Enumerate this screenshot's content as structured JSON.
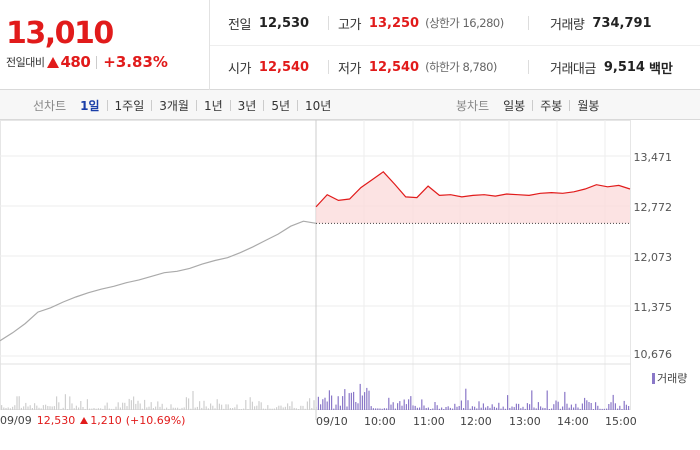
{
  "quote": {
    "price": "13,010",
    "change_label": "전일대비",
    "change_value": "480",
    "change_pct": "+3.83%",
    "prev_close_label": "전일",
    "prev_close": "12,530",
    "high_label": "고가",
    "high": "13,250",
    "upper_limit_label": "(상한가 16,280)",
    "volume_label": "거래량",
    "volume": "734,791",
    "open_label": "시가",
    "open": "12,540",
    "low_label": "저가",
    "low": "12,540",
    "lower_limit_label": "(하한가 8,780)",
    "value_label": "거래대금",
    "value": "9,514",
    "value_unit": "백만",
    "up_color": "#e11b1b"
  },
  "tabs": {
    "line_title": "선차트",
    "line_items": [
      "1일",
      "1주일",
      "3개월",
      "1년",
      "3년",
      "5년",
      "10년"
    ],
    "line_active": "1일",
    "candle_title": "봉차트",
    "candle_items": [
      "일봉",
      "주봉",
      "월봉"
    ]
  },
  "chart_data": {
    "type": "line",
    "y_ticks": [
      "13,471",
      "12,772",
      "12,073",
      "11,375",
      "10,676"
    ],
    "ylim": [
      10676,
      13471
    ],
    "x_labels": [
      "09/10",
      "10:00",
      "11:00",
      "12:00",
      "13:00",
      "14:00",
      "15:00"
    ],
    "reference_price": 12530,
    "series": [
      {
        "name": "09/09",
        "color": "#aaaaaa",
        "values": [
          10890,
          11000,
          11130,
          11290,
          11350,
          11430,
          11500,
          11560,
          11610,
          11650,
          11700,
          11740,
          11790,
          11840,
          11860,
          11900,
          11960,
          12010,
          12050,
          12120,
          12200,
          12290,
          12380,
          12490,
          12560,
          12530
        ]
      },
      {
        "name": "09/10",
        "color": "#e11b1b",
        "values": [
          12760,
          12930,
          12850,
          12870,
          13030,
          13140,
          13250,
          13080,
          12900,
          12890,
          13050,
          12920,
          12930,
          12900,
          12920,
          12930,
          12910,
          12940,
          12930,
          12920,
          12950,
          12960,
          12950,
          12970,
          13010,
          13070,
          13040,
          13060,
          13010
        ]
      }
    ],
    "volume_label": "거래량",
    "volume_color": "#8a78c8"
  },
  "prev_info": {
    "date": "09/09",
    "close": "12,530",
    "change": "1,210",
    "pct": "(+10.69%)"
  }
}
